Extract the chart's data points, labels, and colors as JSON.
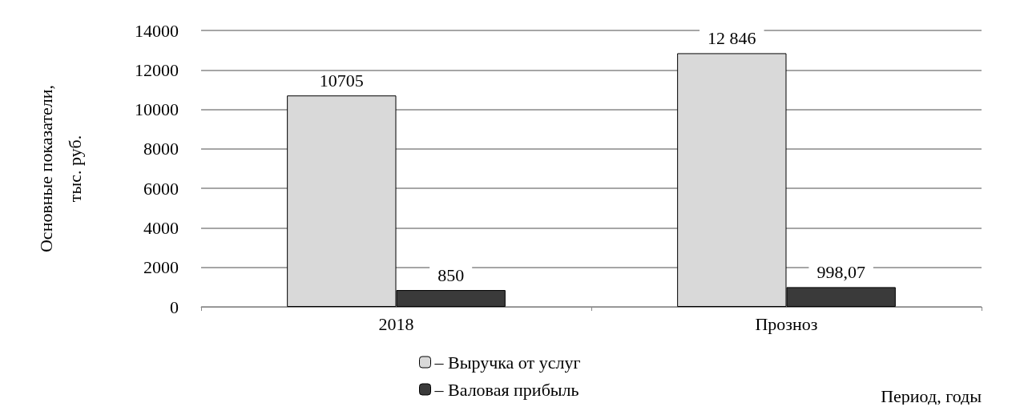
{
  "chart_data": {
    "type": "bar",
    "categories": [
      "2018",
      "Прозноз"
    ],
    "series": [
      {
        "name": "– Выручка от услуг",
        "color": "#d9d9d9",
        "values": [
          10705,
          12846
        ],
        "value_labels": [
          "10705",
          "12 846"
        ]
      },
      {
        "name": "– Валовая прибыль",
        "color": "#3a3a3a",
        "values": [
          850,
          998.07
        ],
        "value_labels": [
          "850",
          "998,07"
        ]
      }
    ],
    "ylim": [
      0,
      14000
    ],
    "yticks": [
      0,
      2000,
      4000,
      6000,
      8000,
      10000,
      12000,
      14000
    ],
    "grid": "y",
    "legend": "bottom",
    "xlabel": "Период, годы",
    "ylabel": "Основные показатели,\nтыс. руб."
  }
}
